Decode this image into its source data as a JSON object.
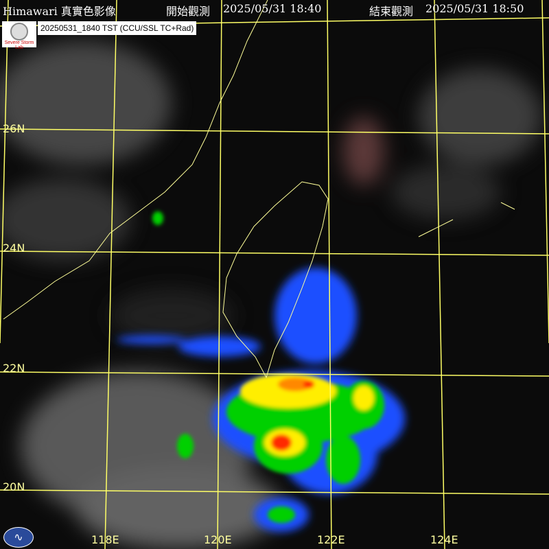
{
  "header": {
    "product": "Himawari 真實色影像",
    "start_label": "開始觀測",
    "start_time": "2025/05/31 18:40",
    "end_label": "結束觀測",
    "end_time": "2025/05/31 18:50"
  },
  "badge": "20250531_1840 TST (CCU/SSL TC+Rad)",
  "lab_logo_text": "Severe Storm Lab",
  "lat_labels": [
    "26N",
    "24N",
    "22N",
    "20N"
  ],
  "lon_labels": [
    "118E",
    "120E",
    "122E",
    "124E"
  ],
  "colors": {
    "grid": "#ffff66",
    "coast": "#ffff99",
    "radar_low": "#1e50ff",
    "radar_mid": "#00d000",
    "radar_high": "#ffee00",
    "radar_peak": "#ff2a00"
  }
}
